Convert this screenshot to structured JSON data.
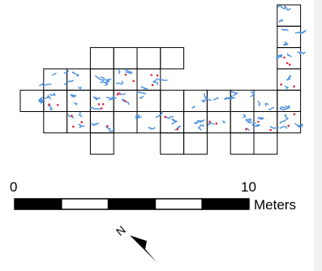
{
  "map": {
    "grid": {
      "cell_outline_color": "#000000",
      "columns": 12,
      "rows": 7,
      "occupied_cells": [
        [
          11,
          0
        ],
        [
          11,
          1
        ],
        [
          3,
          2
        ],
        [
          4,
          2
        ],
        [
          5,
          2
        ],
        [
          6,
          2
        ],
        [
          11,
          2
        ],
        [
          1,
          3
        ],
        [
          2,
          3
        ],
        [
          3,
          3
        ],
        [
          4,
          3
        ],
        [
          5,
          3
        ],
        [
          11,
          3
        ],
        [
          0,
          4
        ],
        [
          1,
          4
        ],
        [
          2,
          4
        ],
        [
          3,
          4
        ],
        [
          4,
          4
        ],
        [
          5,
          4
        ],
        [
          6,
          4
        ],
        [
          7,
          4
        ],
        [
          8,
          4
        ],
        [
          9,
          4
        ],
        [
          10,
          4
        ],
        [
          11,
          4
        ],
        [
          1,
          5
        ],
        [
          2,
          5
        ],
        [
          3,
          5
        ],
        [
          4,
          5
        ],
        [
          5,
          5
        ],
        [
          6,
          5
        ],
        [
          7,
          5
        ],
        [
          8,
          5
        ],
        [
          9,
          5
        ],
        [
          10,
          5
        ],
        [
          11,
          5
        ],
        [
          3,
          6
        ],
        [
          6,
          6
        ],
        [
          7,
          6
        ],
        [
          9,
          6
        ],
        [
          10,
          6
        ]
      ]
    },
    "feature_colors": {
      "artifact_outline": "#4a8fe0",
      "point_find": "#e0243a"
    }
  },
  "scale_bar": {
    "label_start": "0",
    "label_end": "10",
    "unit": "Meters",
    "segments": 5
  },
  "north_arrow": {
    "label": "N",
    "icon": "north-arrow-icon"
  }
}
